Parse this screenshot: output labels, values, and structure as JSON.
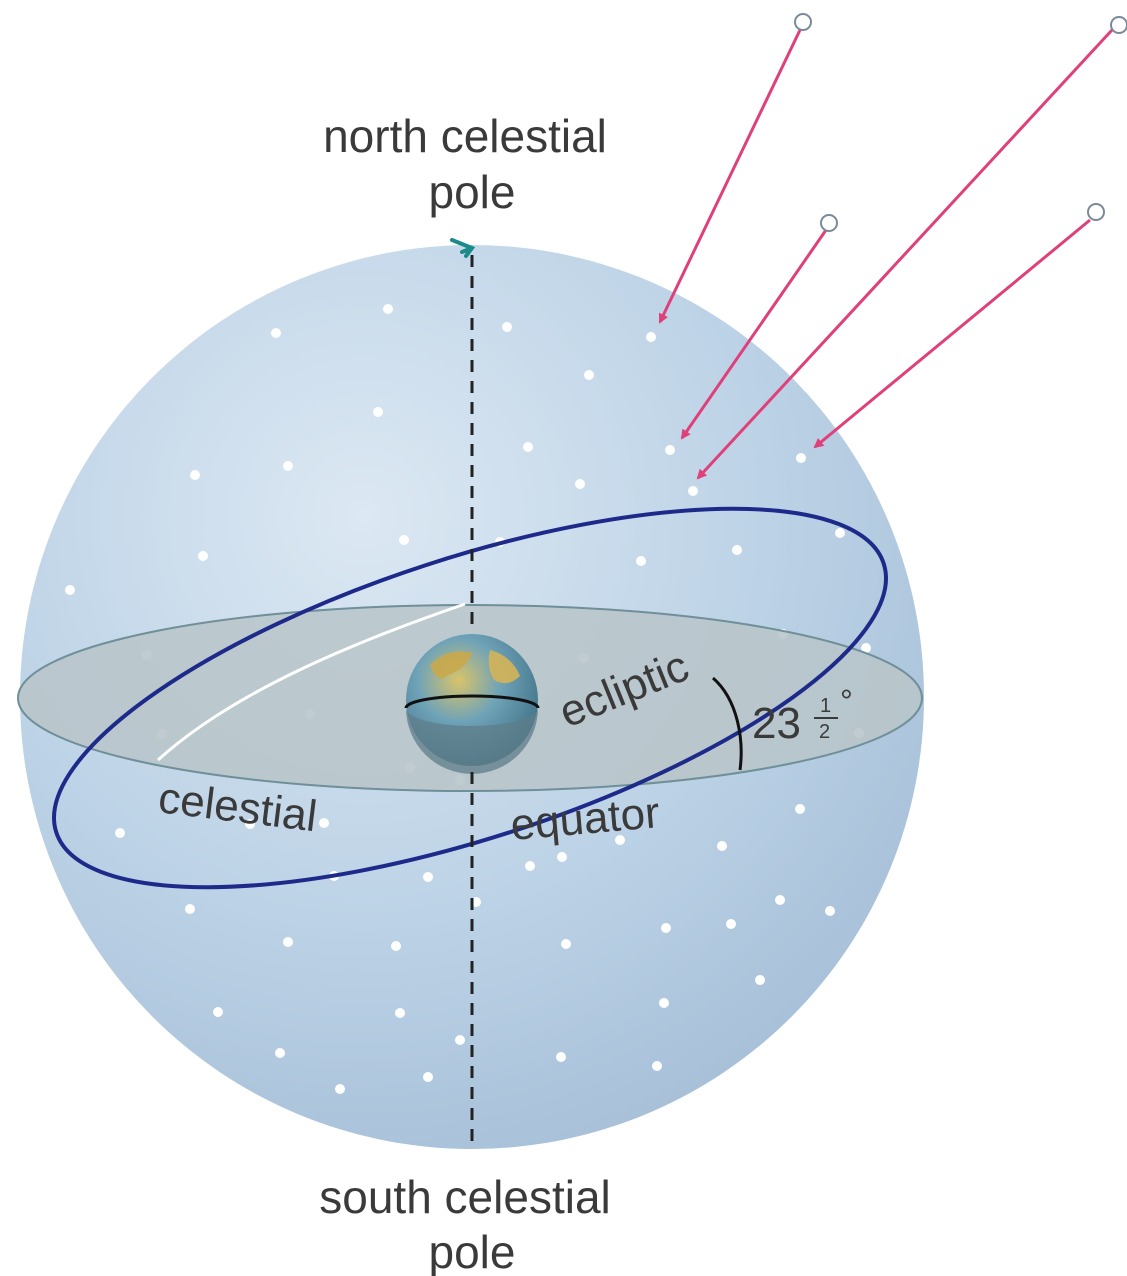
{
  "labels": {
    "north_pole_line1": "north celestial",
    "north_pole_line2": "pole",
    "south_pole_line1": "south celestial",
    "south_pole_line2": "pole",
    "ecliptic": "ecliptic",
    "celestial": "celestial",
    "equator": "equator",
    "angle_whole": "23",
    "angle_num": "1",
    "angle_den": "2",
    "angle_deg": "°"
  },
  "colors": {
    "sphere": "#bcd2e6",
    "equator_plane": "#b9c6cb",
    "ecliptic": "#1e2a8a",
    "arrows": "#e0407a",
    "stars": "#ffffff",
    "pole_marker": "#1a8a8a",
    "axis": "#222222"
  }
}
